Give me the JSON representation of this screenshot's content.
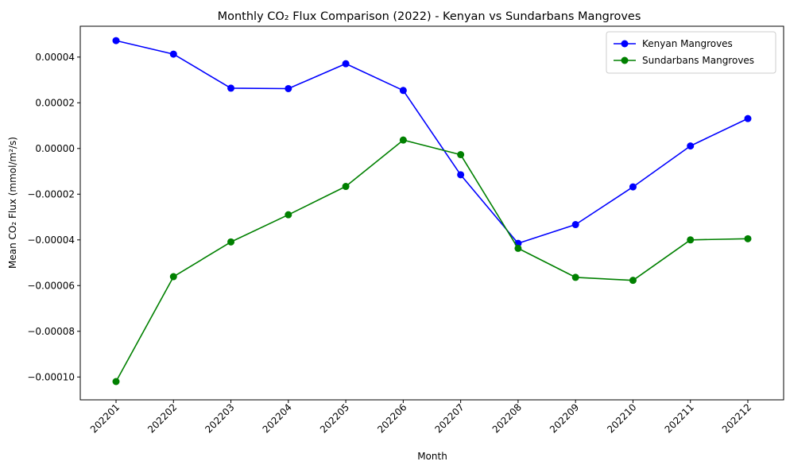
{
  "chart_data": {
    "type": "line",
    "title": "Monthly CO₂ Flux Comparison (2022) - Kenyan vs Sundarbans Mangroves",
    "xlabel": "Month",
    "ylabel": "Mean CO₂ Flux (mmol/m²/s)",
    "categories": [
      "202201",
      "202202",
      "202203",
      "202204",
      "202205",
      "202206",
      "202207",
      "202208",
      "202209",
      "202210",
      "202211",
      "202212"
    ],
    "ylim": [
      -0.00011,
      5.35e-05
    ],
    "yticks": [
      -0.0001,
      -8e-05,
      -6e-05,
      -4e-05,
      -2e-05,
      0,
      2e-05,
      4e-05
    ],
    "ytick_labels": [
      "−0.00010",
      "−0.00008",
      "−0.00006",
      "−0.00004",
      "−0.00002",
      "0.00000",
      "0.00002",
      "0.00004"
    ],
    "grid": false,
    "legend_position": "top-right",
    "series": [
      {
        "name": "Kenyan Mangroves",
        "color": "#0000ff",
        "marker": "circle",
        "values": [
          4.72e-05,
          4.13e-05,
          2.64e-05,
          2.62e-05,
          3.71e-05,
          2.54e-05,
          -1.15e-05,
          -4.15e-05,
          -3.33e-05,
          -1.68e-05,
          1.1e-06,
          1.31e-05
        ]
      },
      {
        "name": "Sundarbans Mangroves",
        "color": "#008000",
        "marker": "circle",
        "values": [
          -0.000102,
          -5.61e-05,
          -4.09e-05,
          -2.9e-05,
          -1.66e-05,
          3.7e-06,
          -2.7e-06,
          -4.37e-05,
          -5.64e-05,
          -5.77e-05,
          -4e-05,
          -3.95e-05
        ]
      }
    ]
  }
}
